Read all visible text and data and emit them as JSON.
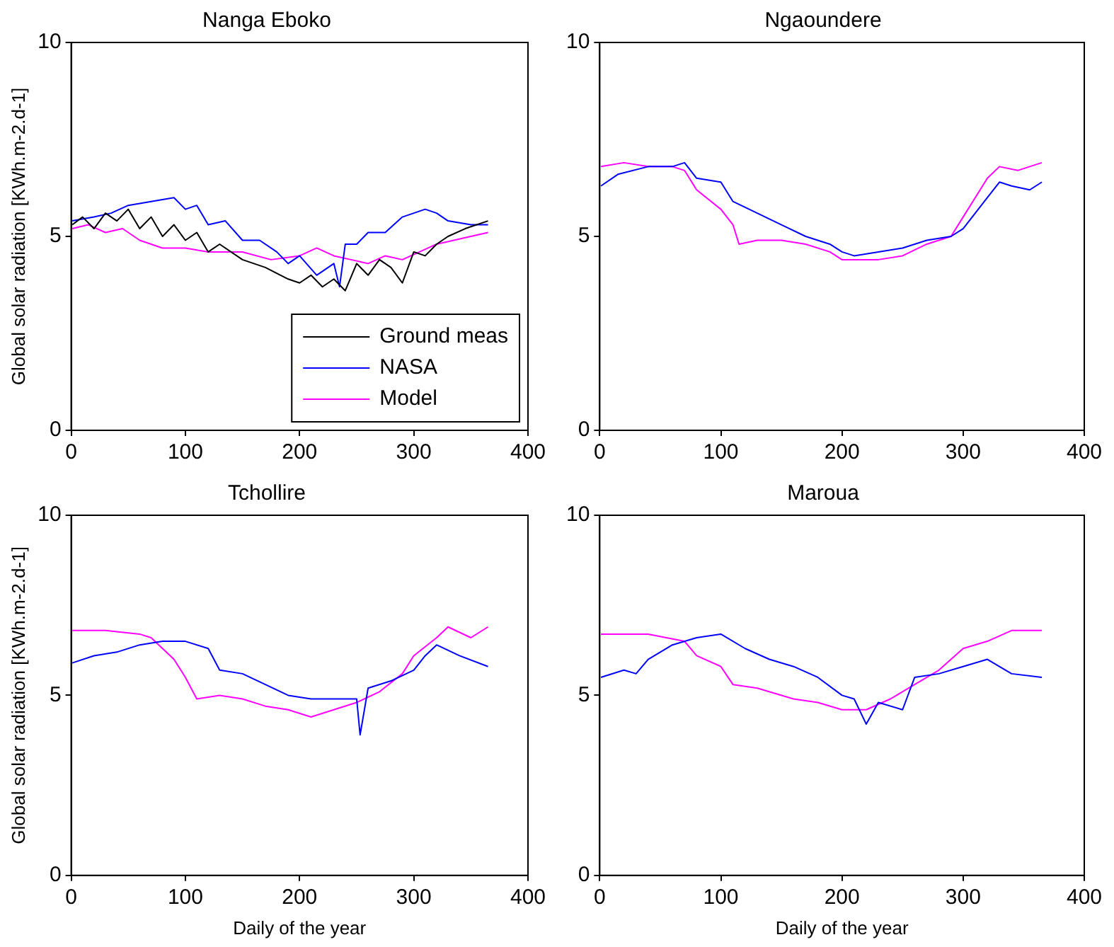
{
  "chart_data": [
    {
      "type": "line",
      "title": "Nanga Eboko",
      "ylabel": "Global solar radiation [KWh.m-2.d-1]",
      "xlim": [
        0,
        400
      ],
      "xticks": [
        0,
        100,
        200,
        300,
        400
      ],
      "ylim": [
        0,
        10
      ],
      "yticks": [
        0,
        5,
        10
      ],
      "grid": false,
      "marker": "none",
      "legend": "bottom right",
      "series": [
        {
          "name": "Ground meas",
          "color": "#000000",
          "x": [
            1,
            10,
            20,
            30,
            40,
            50,
            60,
            70,
            80,
            90,
            100,
            110,
            120,
            130,
            150,
            170,
            190,
            200,
            210,
            220,
            230,
            240,
            250,
            260,
            270,
            280,
            290,
            300,
            310,
            320,
            330,
            345,
            365
          ],
          "values": [
            5.3,
            5.5,
            5.2,
            5.6,
            5.4,
            5.7,
            5.2,
            5.5,
            5.0,
            5.3,
            4.9,
            5.1,
            4.6,
            4.8,
            4.4,
            4.2,
            3.9,
            3.8,
            4.0,
            3.7,
            3.9,
            3.6,
            4.3,
            4.0,
            4.4,
            4.2,
            3.8,
            4.6,
            4.5,
            4.8,
            5.0,
            5.2,
            5.4
          ]
        },
        {
          "name": "NASA",
          "color": "#0000ff",
          "x": [
            1,
            20,
            35,
            50,
            70,
            90,
            100,
            110,
            120,
            135,
            150,
            165,
            180,
            190,
            200,
            215,
            230,
            235,
            240,
            250,
            260,
            275,
            290,
            310,
            320,
            330,
            350,
            365
          ],
          "values": [
            5.4,
            5.5,
            5.6,
            5.8,
            5.9,
            6.0,
            5.7,
            5.8,
            5.3,
            5.4,
            4.9,
            4.9,
            4.6,
            4.3,
            4.5,
            4.0,
            4.3,
            3.7,
            4.8,
            4.8,
            5.1,
            5.1,
            5.5,
            5.7,
            5.6,
            5.4,
            5.3,
            5.3
          ]
        },
        {
          "name": "Model",
          "color": "#ff00ff",
          "x": [
            1,
            15,
            30,
            45,
            60,
            80,
            100,
            120,
            150,
            175,
            200,
            215,
            230,
            245,
            260,
            275,
            290,
            305,
            320,
            335,
            350,
            365
          ],
          "values": [
            5.2,
            5.3,
            5.1,
            5.2,
            4.9,
            4.7,
            4.7,
            4.6,
            4.6,
            4.4,
            4.5,
            4.7,
            4.5,
            4.4,
            4.3,
            4.5,
            4.4,
            4.6,
            4.8,
            4.9,
            5.0,
            5.1
          ]
        }
      ]
    },
    {
      "type": "line",
      "title": "Ngaoundere",
      "xlim": [
        0,
        400
      ],
      "xticks": [
        0,
        100,
        200,
        300,
        400
      ],
      "ylim": [
        0,
        10
      ],
      "yticks": [
        0,
        5,
        10
      ],
      "grid": false,
      "marker": "none",
      "series": [
        {
          "color": "#0000ff",
          "x": [
            1,
            15,
            40,
            60,
            70,
            80,
            100,
            110,
            130,
            150,
            170,
            190,
            200,
            210,
            230,
            250,
            270,
            290,
            300,
            310,
            320,
            330,
            340,
            355,
            365
          ],
          "values": [
            6.3,
            6.6,
            6.8,
            6.8,
            6.9,
            6.5,
            6.4,
            5.9,
            5.6,
            5.3,
            5.0,
            4.8,
            4.6,
            4.5,
            4.6,
            4.7,
            4.9,
            5.0,
            5.2,
            5.6,
            6.0,
            6.4,
            6.3,
            6.2,
            6.4
          ]
        },
        {
          "color": "#ff00ff",
          "x": [
            1,
            20,
            40,
            60,
            70,
            80,
            100,
            110,
            115,
            130,
            150,
            170,
            190,
            200,
            230,
            250,
            270,
            290,
            300,
            310,
            320,
            330,
            345,
            365
          ],
          "values": [
            6.8,
            6.9,
            6.8,
            6.8,
            6.7,
            6.2,
            5.7,
            5.3,
            4.8,
            4.9,
            4.9,
            4.8,
            4.6,
            4.4,
            4.4,
            4.5,
            4.8,
            5.0,
            5.5,
            6.0,
            6.5,
            6.8,
            6.7,
            6.9
          ]
        }
      ]
    },
    {
      "type": "line",
      "title": "Tchollire",
      "xlabel": "Daily of the year",
      "ylabel": "Global solar radiation [KWh.m-2.d-1]",
      "xlim": [
        0,
        400
      ],
      "xticks": [
        0,
        100,
        200,
        300,
        400
      ],
      "ylim": [
        0,
        10
      ],
      "yticks": [
        0,
        5,
        10
      ],
      "grid": false,
      "marker": "none",
      "series": [
        {
          "color": "#0000ff",
          "x": [
            1,
            20,
            40,
            60,
            80,
            100,
            120,
            130,
            150,
            170,
            190,
            210,
            230,
            250,
            253,
            260,
            280,
            300,
            310,
            320,
            340,
            365
          ],
          "values": [
            5.9,
            6.1,
            6.2,
            6.4,
            6.5,
            6.5,
            6.3,
            5.7,
            5.6,
            5.3,
            5.0,
            4.9,
            4.9,
            4.9,
            3.9,
            5.2,
            5.4,
            5.7,
            6.1,
            6.4,
            6.1,
            5.8
          ]
        },
        {
          "color": "#ff00ff",
          "x": [
            1,
            30,
            60,
            70,
            90,
            100,
            110,
            130,
            150,
            170,
            190,
            210,
            230,
            250,
            270,
            290,
            300,
            320,
            330,
            350,
            365
          ],
          "values": [
            6.8,
            6.8,
            6.7,
            6.6,
            6.0,
            5.5,
            4.9,
            5.0,
            4.9,
            4.7,
            4.6,
            4.4,
            4.6,
            4.8,
            5.1,
            5.6,
            6.1,
            6.6,
            6.9,
            6.6,
            6.9
          ]
        }
      ]
    },
    {
      "type": "line",
      "title": "Maroua",
      "xlabel": "Daily of the year",
      "xlim": [
        0,
        400
      ],
      "xticks": [
        0,
        100,
        200,
        300,
        400
      ],
      "ylim": [
        0,
        10
      ],
      "yticks": [
        0,
        5,
        10
      ],
      "grid": false,
      "marker": "none",
      "series": [
        {
          "color": "#0000ff",
          "x": [
            1,
            20,
            30,
            40,
            60,
            80,
            100,
            120,
            140,
            160,
            180,
            200,
            210,
            220,
            230,
            250,
            260,
            280,
            300,
            320,
            340,
            365
          ],
          "values": [
            5.5,
            5.7,
            5.6,
            6.0,
            6.4,
            6.6,
            6.7,
            6.3,
            6.0,
            5.8,
            5.5,
            5.0,
            4.9,
            4.2,
            4.8,
            4.6,
            5.5,
            5.6,
            5.8,
            6.0,
            5.6,
            5.5
          ]
        },
        {
          "color": "#ff00ff",
          "x": [
            1,
            40,
            70,
            80,
            100,
            110,
            130,
            160,
            180,
            200,
            220,
            240,
            260,
            280,
            300,
            320,
            340,
            365
          ],
          "values": [
            6.7,
            6.7,
            6.5,
            6.1,
            5.8,
            5.3,
            5.2,
            4.9,
            4.8,
            4.6,
            4.6,
            4.9,
            5.3,
            5.7,
            6.3,
            6.5,
            6.8,
            6.8
          ]
        }
      ]
    }
  ]
}
